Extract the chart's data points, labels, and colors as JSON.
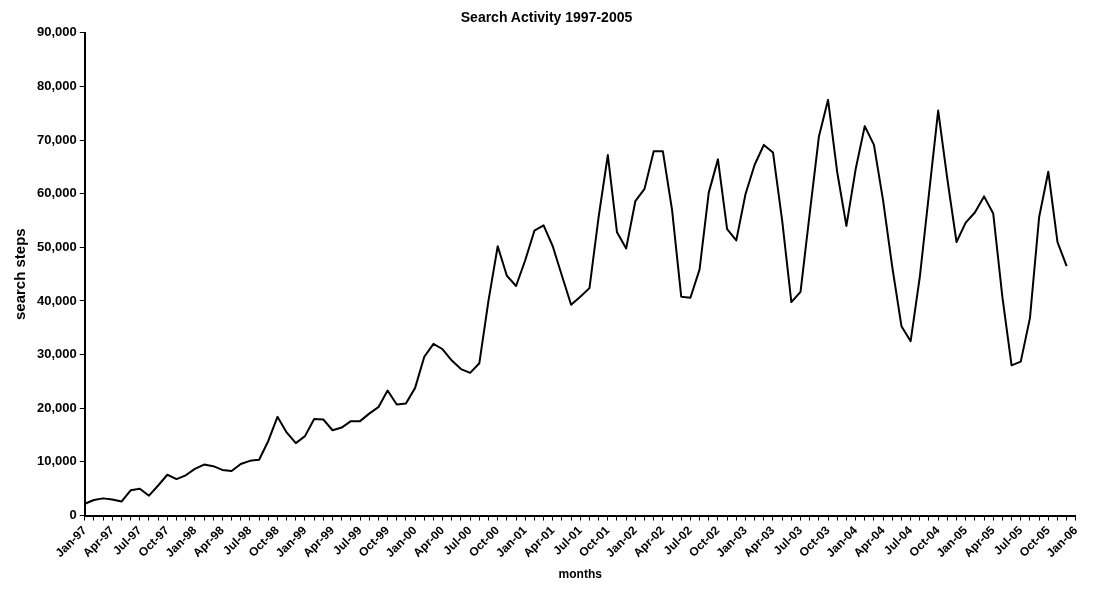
{
  "chart_data": {
    "type": "line",
    "title": "Search Activity 1997-2005",
    "xlabel": "months",
    "ylabel": "search steps",
    "categories": [
      "Jan-97",
      null,
      null,
      "Apr-97",
      null,
      null,
      "Jul-97",
      null,
      null,
      "Oct-97",
      null,
      null,
      "Jan-98",
      null,
      null,
      "Apr-98",
      null,
      null,
      "Jul-98",
      null,
      null,
      "Oct-98",
      null,
      null,
      "Jan-99",
      null,
      null,
      "Apr-99",
      null,
      null,
      "Jul-99",
      null,
      null,
      "Oct-99",
      null,
      null,
      "Jan-00",
      null,
      null,
      "Apr-00",
      null,
      null,
      "Jul-00",
      null,
      null,
      "Oct-00",
      null,
      null,
      "Jan-01",
      null,
      null,
      "Apr-01",
      null,
      null,
      "Jul-01",
      null,
      null,
      "Oct-01",
      null,
      null,
      "Jan-02",
      null,
      null,
      "Apr-02",
      null,
      null,
      "Jul-02",
      null,
      null,
      "Oct-02",
      null,
      null,
      "Jan-03",
      null,
      null,
      "Apr-03",
      null,
      null,
      "Jul-03",
      null,
      null,
      "Oct-03",
      null,
      null,
      "Jan-04",
      null,
      null,
      "Apr-04",
      null,
      null,
      "Jul-04",
      null,
      null,
      "Oct-04",
      null,
      null,
      "Jan-05",
      null,
      null,
      "Apr-05",
      null,
      null,
      "Jul-05",
      null,
      null,
      "Oct-05",
      null,
      null,
      "Jan-06"
    ],
    "series": [
      {
        "color": "#000000",
        "values": [
          2200,
          2900,
          3200,
          3000,
          2600,
          4700,
          5000,
          3700,
          5600,
          7600,
          6800,
          7500,
          8700,
          9500,
          9200,
          8500,
          8300,
          9600,
          10200,
          10400,
          13900,
          18400,
          15500,
          13500,
          14800,
          18000,
          17900,
          15900,
          16400,
          17600,
          17600,
          19000,
          20200,
          23300,
          20700,
          20900,
          23800,
          29600,
          32000,
          31000,
          28900,
          27300,
          26600,
          28400,
          40100,
          50200,
          44700,
          42800,
          47600,
          53100,
          54100,
          50200,
          44700,
          39300,
          40800,
          42400,
          55700,
          67200,
          52800,
          49800,
          58600,
          60900,
          67900,
          67900,
          57000,
          40800,
          40600,
          45900,
          60200,
          66400,
          53400,
          51300,
          59900,
          65400,
          69100,
          67700,
          55000,
          39800,
          41700,
          56300,
          70600,
          77500,
          64000,
          54000,
          64500,
          72600,
          69100,
          58700,
          46300,
          35300,
          32500,
          44500,
          60000,
          75500,
          62700,
          51000,
          54600,
          56500,
          59500,
          56300,
          40700,
          28000,
          28700,
          36800,
          55600,
          64100,
          51000,
          46500,
          null
        ]
      }
    ],
    "ylim": [
      0,
      90000
    ],
    "yticks": [
      0,
      {
        "value": 10000,
        "label": "10,000"
      },
      {
        "value": 20000,
        "label": "20,000"
      },
      {
        "value": 30000,
        "label": "30,000"
      },
      {
        "value": 40000,
        "label": "40,000"
      },
      {
        "value": 50000,
        "label": "50,000"
      },
      {
        "value": 60000,
        "label": "60,000"
      },
      {
        "value": 70000,
        "label": "70,000"
      },
      {
        "value": 80000,
        "label": "80,000"
      },
      {
        "value": 90000,
        "label": "90,000"
      }
    ],
    "grid": false,
    "legend": false,
    "marker": "none",
    "line_style": "solid"
  }
}
